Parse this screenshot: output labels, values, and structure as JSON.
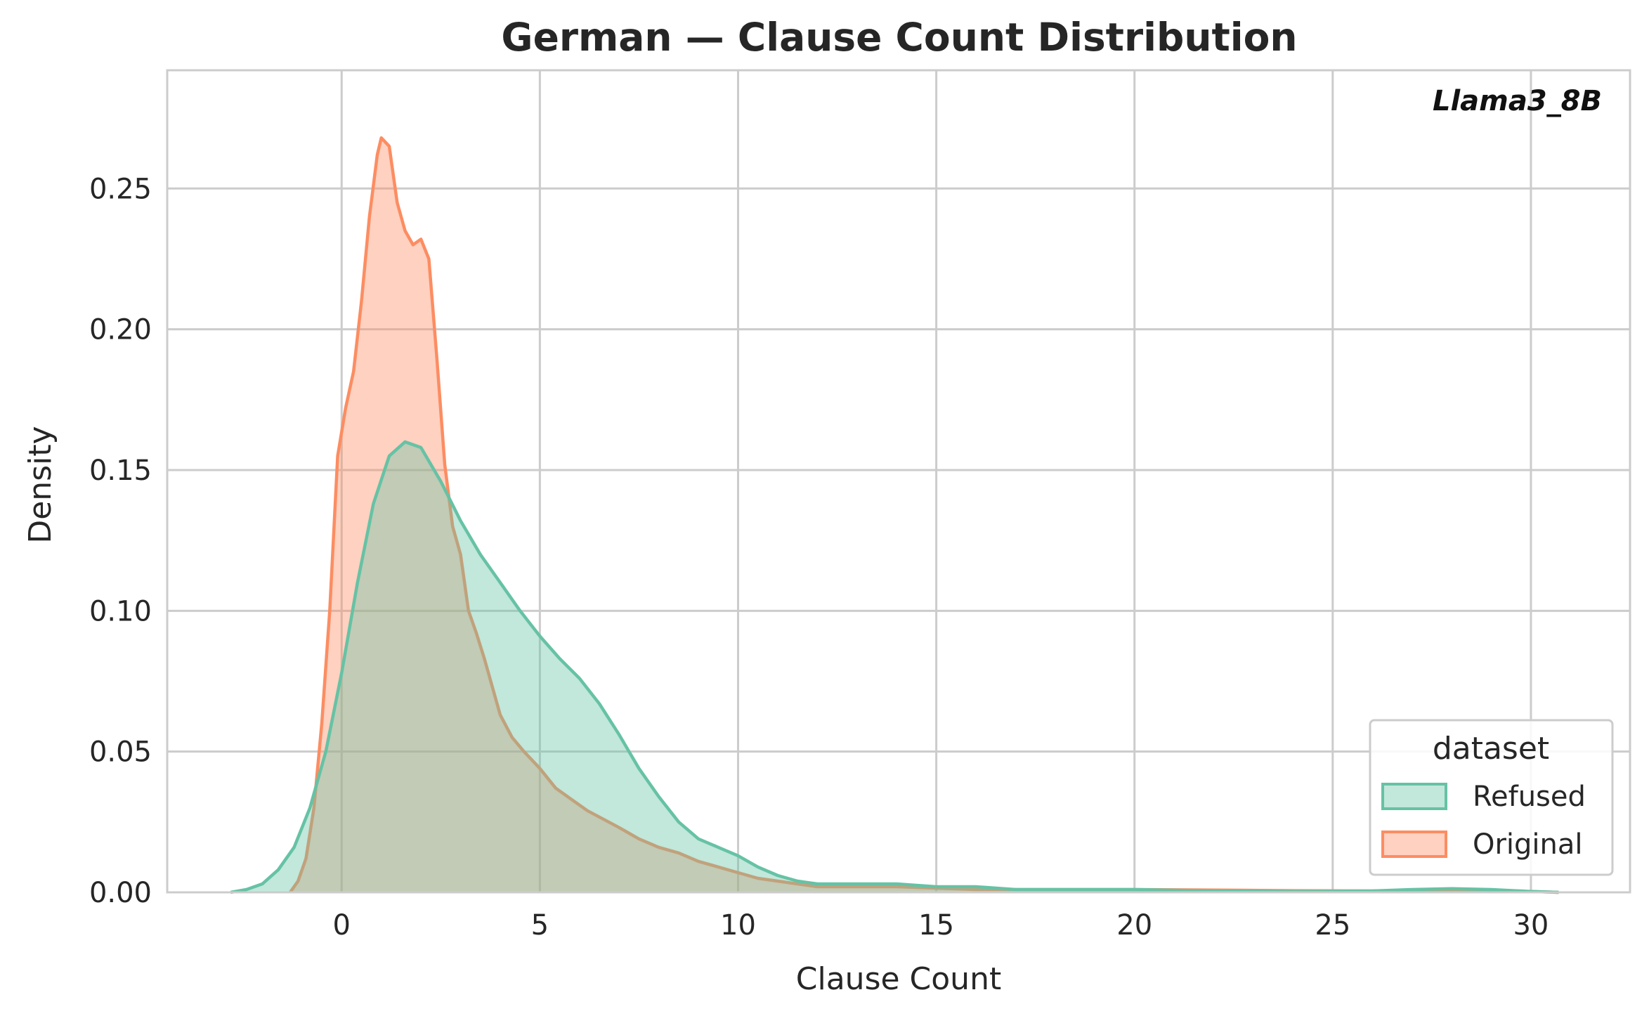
{
  "chart_data": {
    "type": "area",
    "subtype": "kde",
    "title": "German — Clause Count Distribution",
    "xlabel": "Clause Count",
    "ylabel": "Density",
    "annotation": "Llama3_8B",
    "xlim": [
      -4.4,
      32.5
    ],
    "ylim": [
      0,
      0.292
    ],
    "xticks": [
      0,
      5,
      10,
      15,
      20,
      25,
      30
    ],
    "xtick_labels": [
      "0",
      "5",
      "10",
      "15",
      "20",
      "25",
      "30"
    ],
    "yticks": [
      0,
      0.05,
      0.1,
      0.15,
      0.2,
      0.25
    ],
    "ytick_labels": [
      "0.00",
      "0.05",
      "0.10",
      "0.15",
      "0.20",
      "0.25"
    ],
    "grid": true,
    "legend": {
      "title": "dataset",
      "position": "lower-right"
    },
    "series": [
      {
        "name": "Refused",
        "color": "#66c2a5",
        "x": [
          -2.8,
          -2.4,
          -2.0,
          -1.6,
          -1.2,
          -0.8,
          -0.4,
          0.0,
          0.4,
          0.8,
          1.2,
          1.6,
          2.0,
          2.5,
          3.0,
          3.5,
          4.0,
          4.5,
          5.0,
          5.5,
          6.0,
          6.5,
          7.0,
          7.5,
          8.0,
          8.5,
          9.0,
          9.5,
          10.0,
          10.5,
          11.0,
          11.5,
          12.0,
          12.5,
          13.0,
          14.0,
          15.0,
          16.0,
          17.0,
          18.0,
          19.0,
          20.0,
          22.0,
          24.0,
          26.0,
          27.0,
          28.0,
          29.0,
          30.0,
          30.7
        ],
        "y": [
          0.0,
          0.001,
          0.003,
          0.008,
          0.016,
          0.03,
          0.05,
          0.078,
          0.11,
          0.138,
          0.155,
          0.16,
          0.158,
          0.146,
          0.132,
          0.12,
          0.11,
          0.1,
          0.091,
          0.083,
          0.076,
          0.067,
          0.056,
          0.044,
          0.034,
          0.025,
          0.019,
          0.016,
          0.013,
          0.009,
          0.006,
          0.004,
          0.003,
          0.003,
          0.003,
          0.003,
          0.002,
          0.002,
          0.001,
          0.001,
          0.001,
          0.001,
          0.0005,
          0.0003,
          0.0005,
          0.001,
          0.0013,
          0.001,
          0.0003,
          0.0
        ]
      },
      {
        "name": "Original",
        "color": "#fc8d62",
        "x": [
          -1.3,
          -1.1,
          -0.9,
          -0.7,
          -0.5,
          -0.3,
          -0.1,
          0.1,
          0.3,
          0.5,
          0.7,
          0.9,
          1.0,
          1.2,
          1.4,
          1.6,
          1.8,
          2.0,
          2.2,
          2.4,
          2.6,
          2.8,
          3.0,
          3.2,
          3.4,
          3.6,
          3.8,
          4.0,
          4.3,
          4.6,
          5.0,
          5.4,
          5.8,
          6.2,
          6.6,
          7.0,
          7.5,
          8.0,
          8.5,
          9.0,
          9.5,
          10.0,
          10.5,
          11.0,
          11.5,
          12.0,
          13.0,
          14.0,
          16.0,
          18.0,
          20.0,
          22.0,
          24.0,
          26.0,
          28.0,
          30.0,
          30.7
        ],
        "y": [
          0.0,
          0.004,
          0.012,
          0.03,
          0.06,
          0.1,
          0.155,
          0.172,
          0.185,
          0.21,
          0.24,
          0.262,
          0.268,
          0.265,
          0.245,
          0.235,
          0.23,
          0.232,
          0.225,
          0.19,
          0.152,
          0.13,
          0.12,
          0.1,
          0.092,
          0.083,
          0.073,
          0.063,
          0.055,
          0.05,
          0.044,
          0.037,
          0.033,
          0.029,
          0.026,
          0.023,
          0.019,
          0.016,
          0.014,
          0.011,
          0.009,
          0.007,
          0.005,
          0.004,
          0.003,
          0.002,
          0.002,
          0.002,
          0.001,
          0.001,
          0.001,
          0.0008,
          0.0006,
          0.0005,
          0.0004,
          0.0003,
          0.0
        ]
      }
    ]
  }
}
